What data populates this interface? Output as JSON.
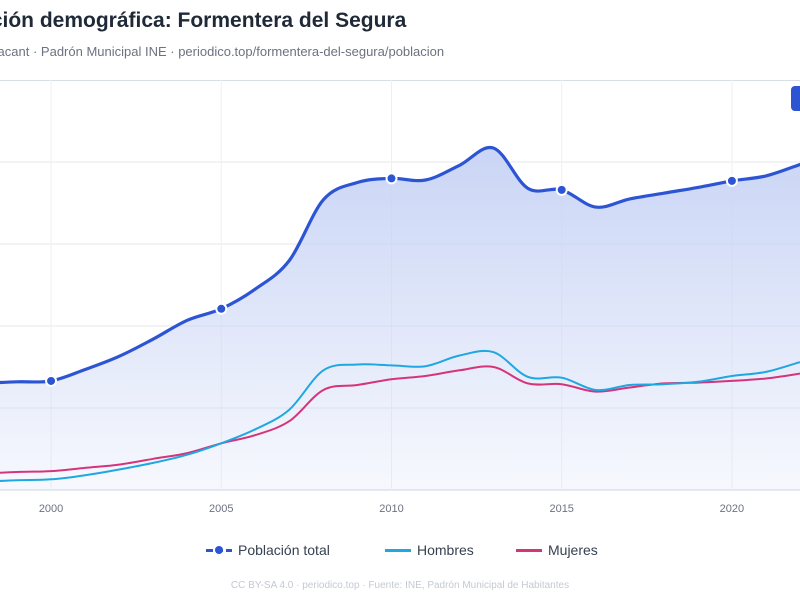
{
  "header": {
    "title": "ución demográfica: Formentera del Segura",
    "subtitle": "Alacant · Padrón Municipal INE · periodico.top/formentera-del-segura/poblacion"
  },
  "footer": {
    "text": "CC BY-SA 4.0 · periodico.top · Fuente: INE, Padrón Municipal de Habitantes"
  },
  "colors": {
    "total": "#2d55d3",
    "hombres": "#1ea7e0",
    "mujeres": "#d6347a",
    "area": "#dbe3f8"
  },
  "chart_data": {
    "type": "line",
    "x": [
      1998,
      1999,
      2000,
      2001,
      2002,
      2003,
      2004,
      2005,
      2006,
      2007,
      2008,
      2009,
      2010,
      2011,
      2012,
      2013,
      2014,
      2015,
      2016,
      2017,
      2018,
      2019,
      2020,
      2021,
      2022
    ],
    "xticks": [
      2000,
      2005,
      2010,
      2015,
      2020
    ],
    "xlim": [
      1998.5,
      2022.0
    ],
    "ylim": [
      0,
      5000
    ],
    "ygrid": [
      1000,
      2000,
      3000,
      4000,
      5000
    ],
    "grid": true,
    "legend_position": "bottom",
    "series": [
      {
        "name": "Población total",
        "style": "dashed-with-markers",
        "marker_years": [
          2000,
          2005,
          2010,
          2015,
          2020
        ],
        "values": [
          1300,
          1320,
          1330,
          1470,
          1630,
          1840,
          2070,
          2210,
          2450,
          2800,
          3540,
          3750,
          3800,
          3780,
          3960,
          4170,
          3680,
          3660,
          3450,
          3550,
          3620,
          3690,
          3770,
          3830,
          3970
        ]
      },
      {
        "name": "Hombres",
        "style": "solid",
        "values": [
          100,
          120,
          130,
          180,
          250,
          330,
          430,
          570,
          740,
          980,
          1460,
          1530,
          1520,
          1510,
          1640,
          1680,
          1380,
          1370,
          1220,
          1280,
          1290,
          1320,
          1390,
          1440,
          1560
        ]
      },
      {
        "name": "Mujeres",
        "style": "solid",
        "values": [
          200,
          220,
          230,
          270,
          310,
          380,
          450,
          570,
          670,
          840,
          1220,
          1280,
          1350,
          1390,
          1460,
          1500,
          1300,
          1290,
          1200,
          1250,
          1300,
          1310,
          1330,
          1360,
          1420
        ]
      }
    ]
  }
}
